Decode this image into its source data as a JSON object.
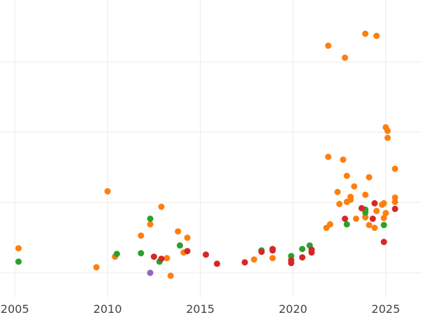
{
  "colors": {
    "orange": "#ff7f0e",
    "green": "#2ca02c",
    "red": "#d62728",
    "purple": "#9467bd",
    "grid": "#ebebeb",
    "tick_text": "#444444"
  },
  "chart_data": {
    "type": "scatter",
    "title": "",
    "xlabel": "",
    "ylabel": "",
    "x_ticks": [
      "2005",
      "2010",
      "2015",
      "2020",
      "2025"
    ],
    "x_tick_values": [
      2005,
      2010,
      2015,
      2020,
      2025
    ],
    "xlim": [
      2004.2,
      2026.9
    ],
    "ylim": [
      -0.15,
      4.08
    ],
    "y_gridlines": [
      0.2,
      1.2,
      2.2,
      3.2,
      4.2
    ],
    "y_tick_labels_visible": false,
    "grid": true,
    "legend": "none",
    "series": [
      {
        "color_key": "orange",
        "points": [
          [
            2005.2,
            0.55
          ],
          [
            2009.4,
            0.28
          ],
          [
            2010.0,
            1.36
          ],
          [
            2010.4,
            0.43
          ],
          [
            2011.8,
            0.73
          ],
          [
            2012.3,
            0.89
          ],
          [
            2012.9,
            1.14
          ],
          [
            2013.2,
            0.41
          ],
          [
            2013.4,
            0.16
          ],
          [
            2013.8,
            0.79
          ],
          [
            2014.1,
            0.49
          ],
          [
            2014.3,
            0.7
          ],
          [
            2017.9,
            0.39
          ],
          [
            2018.9,
            0.41
          ],
          [
            2021.8,
            0.84
          ],
          [
            2021.9,
            1.85
          ],
          [
            2021.9,
            3.43
          ],
          [
            2022.0,
            0.89
          ],
          [
            2022.4,
            1.35
          ],
          [
            2022.5,
            1.18
          ],
          [
            2022.7,
            1.81
          ],
          [
            2022.8,
            3.26
          ],
          [
            2022.9,
            1.58
          ],
          [
            2022.9,
            1.21
          ],
          [
            2023.1,
            1.24
          ],
          [
            2023.1,
            1.28
          ],
          [
            2023.3,
            1.43
          ],
          [
            2023.4,
            0.97
          ],
          [
            2023.9,
            0.99
          ],
          [
            2023.9,
            1.0
          ],
          [
            2023.9,
            1.31
          ],
          [
            2023.9,
            3.6
          ],
          [
            2024.1,
            1.56
          ],
          [
            2024.1,
            0.88
          ],
          [
            2024.4,
            0.84
          ],
          [
            2024.5,
            3.57
          ],
          [
            2024.5,
            1.08
          ],
          [
            2024.8,
            1.17
          ],
          [
            2024.9,
            1.19
          ],
          [
            2024.9,
            0.98
          ],
          [
            2025.0,
            2.27
          ],
          [
            2025.0,
            1.05
          ],
          [
            2025.1,
            2.12
          ],
          [
            2025.1,
            2.22
          ],
          [
            2025.5,
            1.68
          ],
          [
            2025.5,
            1.21
          ],
          [
            2025.5,
            1.27
          ]
        ]
      },
      {
        "color_key": "green",
        "points": [
          [
            2005.2,
            0.36
          ],
          [
            2010.5,
            0.47
          ],
          [
            2011.8,
            0.48
          ],
          [
            2012.3,
            0.97
          ],
          [
            2012.8,
            0.36
          ],
          [
            2013.9,
            0.59
          ],
          [
            2018.3,
            0.52
          ],
          [
            2019.9,
            0.44
          ],
          [
            2020.5,
            0.54
          ],
          [
            2020.9,
            0.59
          ],
          [
            2022.9,
            0.89
          ],
          [
            2023.9,
            1.1
          ],
          [
            2023.9,
            1.06
          ],
          [
            2024.9,
            0.88
          ]
        ]
      },
      {
        "color_key": "red",
        "points": [
          [
            2012.5,
            0.43
          ],
          [
            2012.9,
            0.4
          ],
          [
            2014.3,
            0.51
          ],
          [
            2015.3,
            0.46
          ],
          [
            2015.9,
            0.33
          ],
          [
            2017.4,
            0.35
          ],
          [
            2018.3,
            0.5
          ],
          [
            2018.9,
            0.54
          ],
          [
            2018.9,
            0.52
          ],
          [
            2019.9,
            0.38
          ],
          [
            2019.9,
            0.34
          ],
          [
            2020.5,
            0.42
          ],
          [
            2021.0,
            0.53
          ],
          [
            2021.0,
            0.49
          ],
          [
            2022.8,
            0.97
          ],
          [
            2023.7,
            1.12
          ],
          [
            2024.3,
            0.97
          ],
          [
            2024.4,
            1.19
          ],
          [
            2024.9,
            0.64
          ],
          [
            2025.5,
            1.11
          ]
        ]
      },
      {
        "color_key": "purple",
        "points": [
          [
            2012.3,
            0.2
          ]
        ]
      }
    ]
  }
}
